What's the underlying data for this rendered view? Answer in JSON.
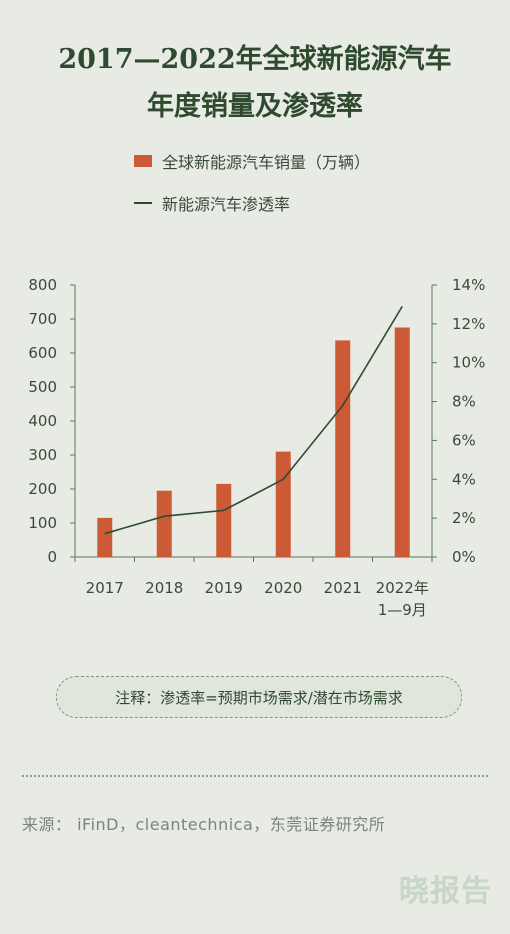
{
  "title": {
    "line1": "2017—2022年全球新能源汽车",
    "line2": "年度销量及渗透率"
  },
  "legend": {
    "bar_label": "全球新能源汽车销量（万辆）",
    "line_label": "新能源汽车渗透率"
  },
  "colors": {
    "bar": "#cd5a36",
    "line": "#2f4a2f",
    "axis": "#5a7a5a"
  },
  "chart_data": {
    "type": "bar+line",
    "categories": [
      "2017",
      "2018",
      "2019",
      "2020",
      "2021",
      "2022年\n1—9月"
    ],
    "series": [
      {
        "name": "全球新能源汽车销量（万辆）",
        "type": "bar",
        "axis": "left",
        "values": [
          115,
          195,
          215,
          310,
          637,
          675
        ]
      },
      {
        "name": "新能源汽车渗透率",
        "type": "line",
        "axis": "right",
        "values": [
          1.2,
          2.1,
          2.4,
          4.0,
          7.8,
          12.9
        ]
      }
    ],
    "y_left": {
      "min": 0,
      "max": 800,
      "ticks": [
        0,
        100,
        200,
        300,
        400,
        500,
        600,
        700,
        800
      ]
    },
    "y_right": {
      "min": 0,
      "max": 14,
      "ticks": [
        "0%",
        "2%",
        "4%",
        "6%",
        "8%",
        "10%",
        "12%",
        "14%"
      ]
    },
    "grid": false
  },
  "note": "注释：渗透率=预期市场需求/潜在市场需求",
  "source": "来源： iFinD，cleantechnica，东莞证券研究所",
  "watermark": "晓报告"
}
